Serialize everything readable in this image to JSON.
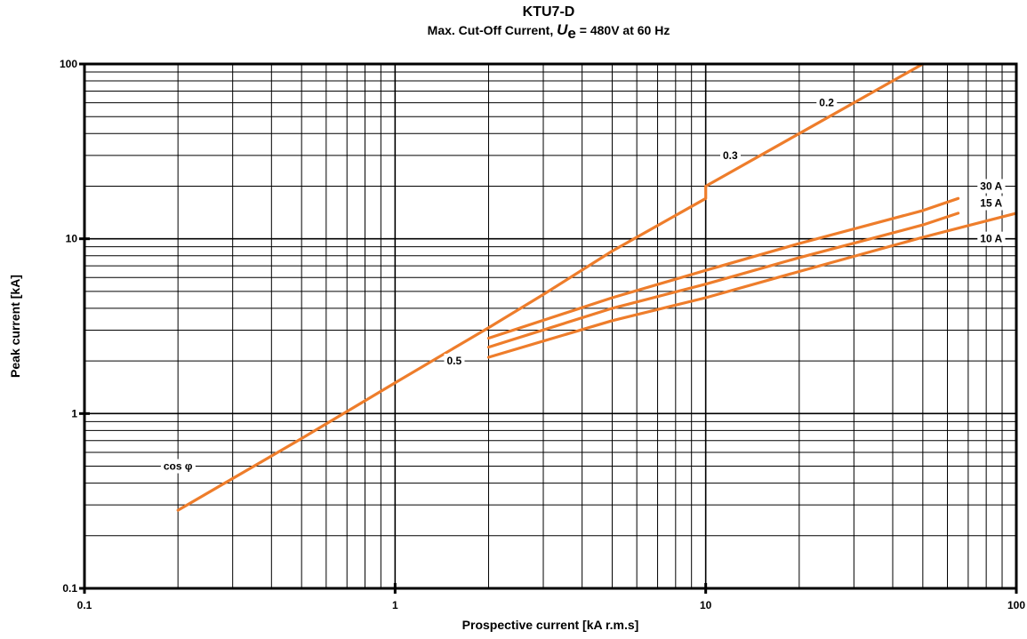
{
  "chart_data": {
    "type": "line",
    "title": "KTU7-D",
    "subtitle": {
      "prefix": "Max. Cut-Off Current, ",
      "symbol": "U",
      "symbol_sub": "e",
      "suffix": " = 480V at 60 Hz"
    },
    "xlabel": "Prospective current [kA r.m.s]",
    "ylabel": "Peak current  [kA]",
    "x_scale": "log",
    "y_scale": "log",
    "xlim": [
      0.1,
      100
    ],
    "ylim": [
      0.1,
      100
    ],
    "x_ticks": [
      {
        "value": 0.1,
        "label": "0.1"
      },
      {
        "value": 1,
        "label": "1"
      },
      {
        "value": 10,
        "label": "10"
      },
      {
        "value": 100,
        "label": "100"
      }
    ],
    "y_ticks": [
      {
        "value": 0.1,
        "label": "0.1"
      },
      {
        "value": 1,
        "label": "1"
      },
      {
        "value": 10,
        "label": "10"
      },
      {
        "value": 100,
        "label": "100"
      }
    ],
    "grid": true,
    "line_color": "#ee7d2b",
    "series": [
      {
        "name": "cos φ",
        "x": [
          0.2,
          0.5,
          1.0,
          2.0,
          3.0,
          5.0,
          10.0,
          10.0,
          20.0,
          50.0
        ],
        "y": [
          0.28,
          0.72,
          1.5,
          3.1,
          4.8,
          8.5,
          17.0,
          20.0,
          40.0,
          100.0
        ]
      },
      {
        "name": "30 A",
        "x": [
          2,
          5,
          10,
          20,
          50,
          65
        ],
        "y": [
          2.7,
          4.6,
          6.6,
          9.4,
          14.5,
          17.0
        ]
      },
      {
        "name": "15 A",
        "x": [
          2,
          5,
          10,
          20,
          50,
          65
        ],
        "y": [
          2.4,
          4.0,
          5.5,
          7.8,
          12.0,
          14.0
        ]
      },
      {
        "name": "10 A",
        "x": [
          2,
          5,
          10,
          20,
          50,
          100
        ],
        "y": [
          2.1,
          3.4,
          4.6,
          6.5,
          10.2,
          14.0
        ]
      }
    ],
    "annotations": [
      {
        "text": "cos φ",
        "x": 0.2,
        "y": 0.5
      },
      {
        "text": "0.5",
        "x": 1.55,
        "y": 2.0
      },
      {
        "text": "0.3",
        "x": 12.0,
        "y": 30.0
      },
      {
        "text": "0.2",
        "x": 24.5,
        "y": 60.0
      },
      {
        "text": "30 A",
        "x": 83,
        "y": 20.0
      },
      {
        "text": "15 A",
        "x": 83,
        "y": 16.0
      },
      {
        "text": "10 A",
        "x": 83,
        "y": 10.0
      }
    ]
  }
}
